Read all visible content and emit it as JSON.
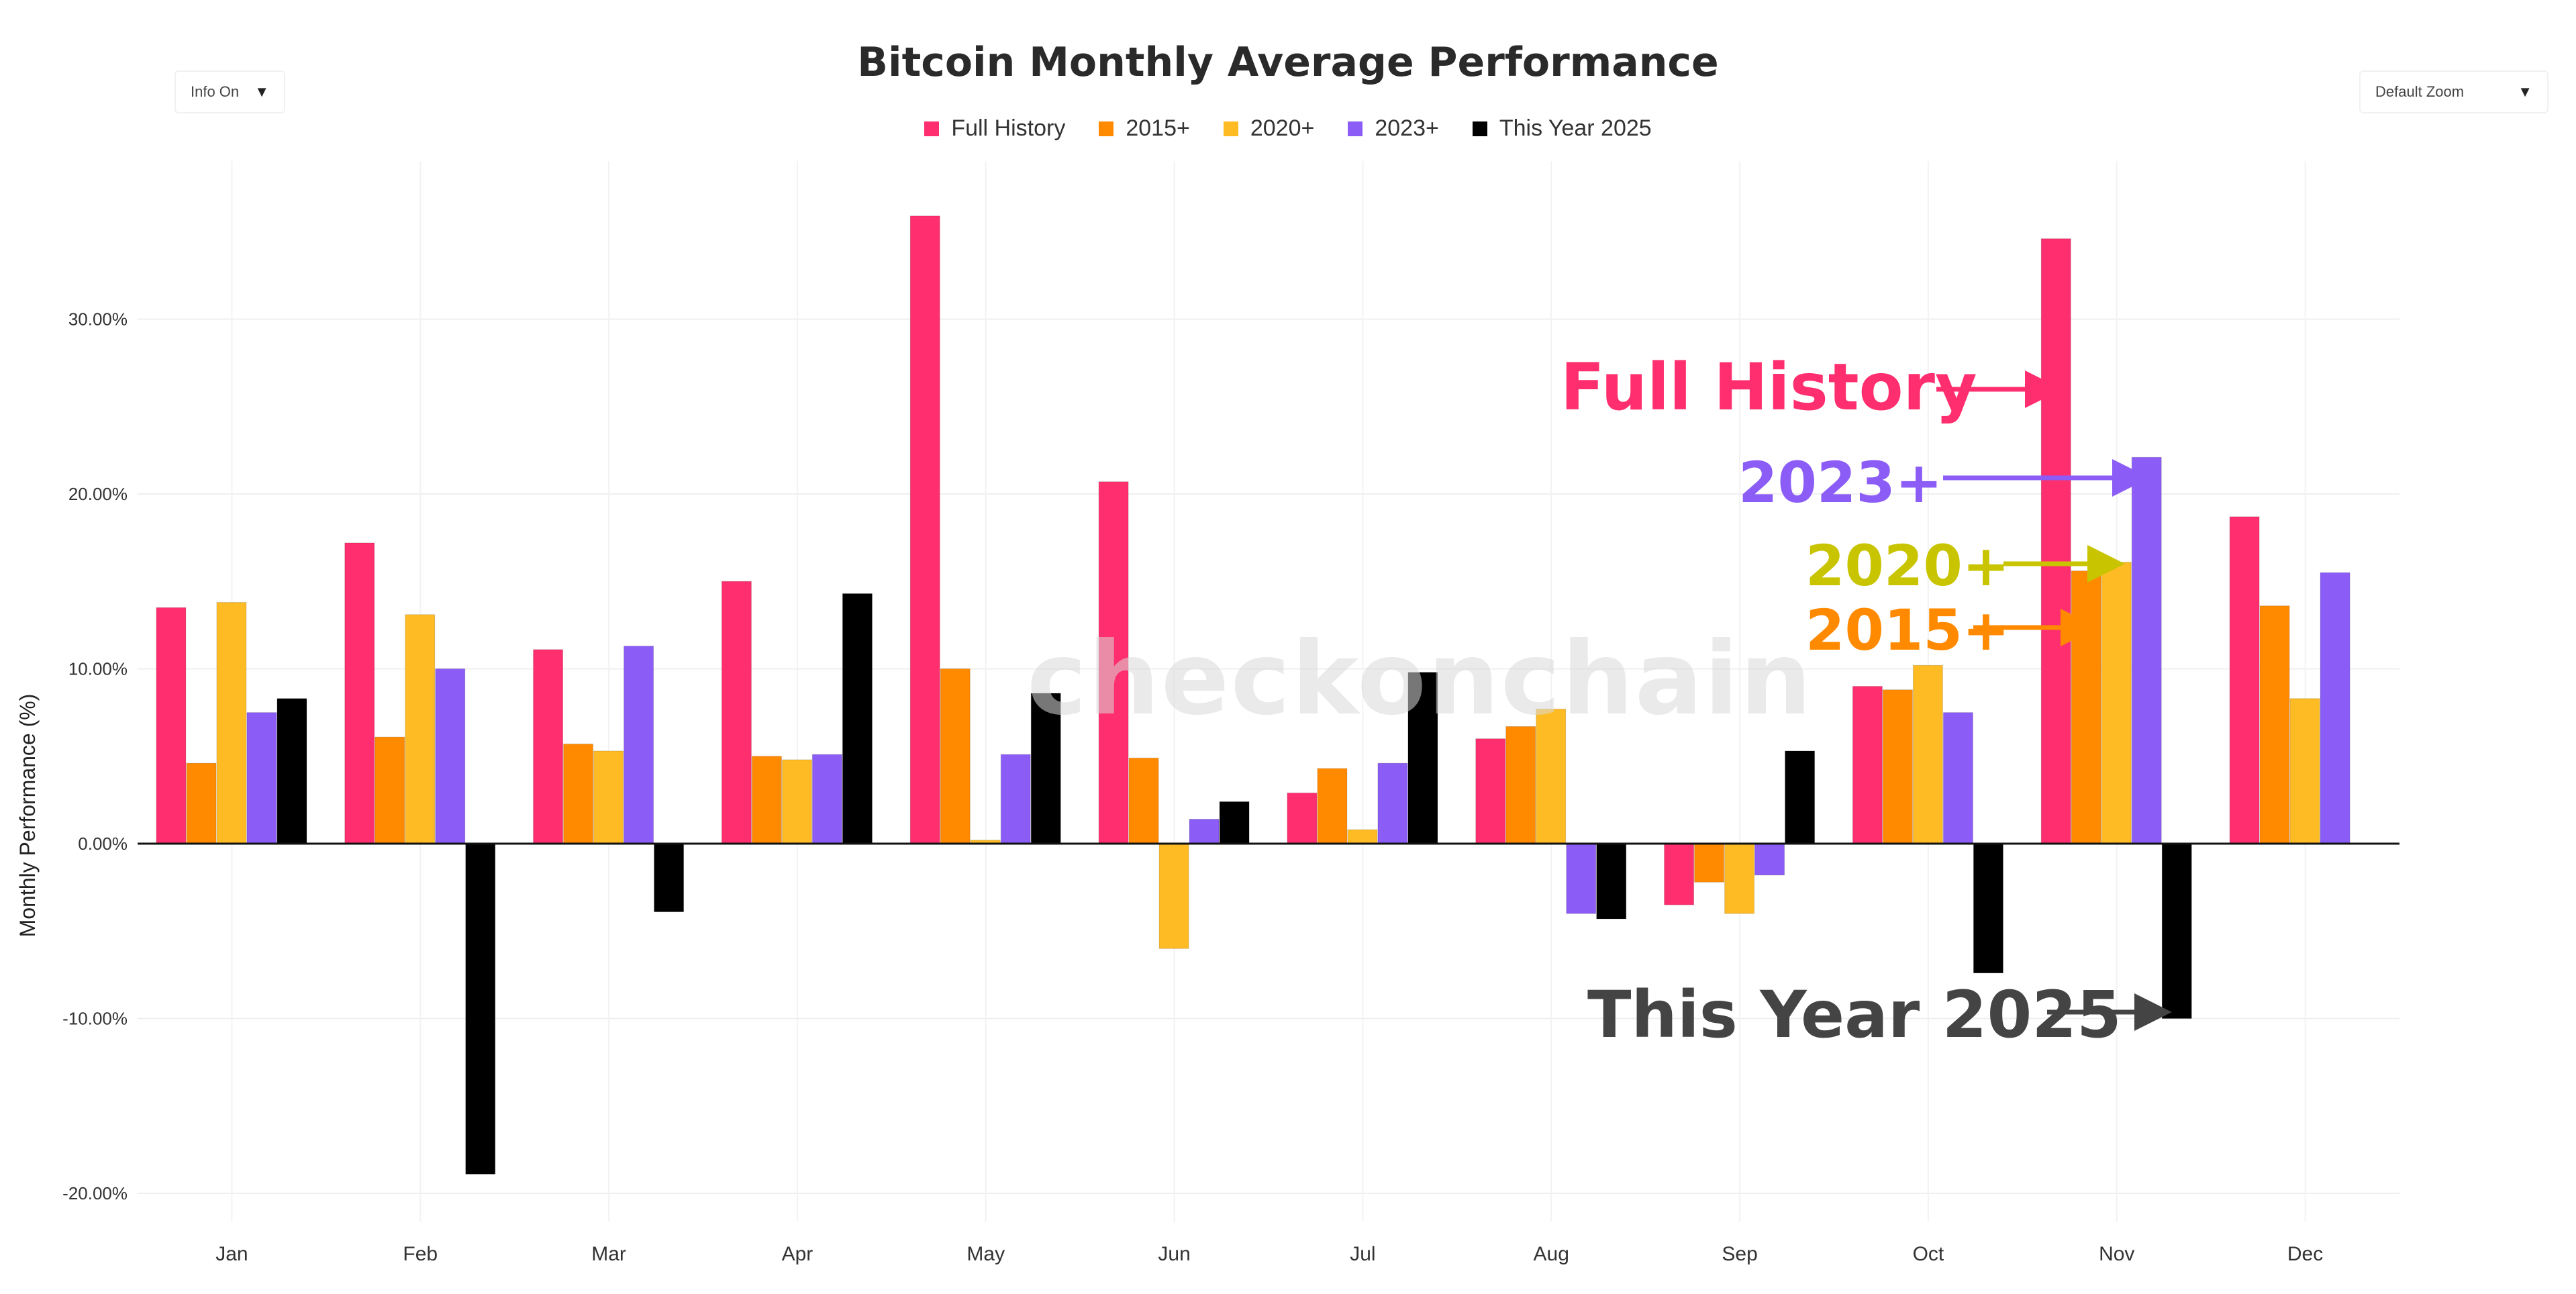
{
  "controls": {
    "info_toggle_label": "Info On",
    "zoom_label": "Default Zoom",
    "caret": "▼"
  },
  "watermark": "checkonchain",
  "annotations": [
    {
      "key": "fh",
      "text": "Full History",
      "color": "#ff2e6e"
    },
    {
      "key": "s2023",
      "text": "2023+",
      "color": "#8b5cf6"
    },
    {
      "key": "s2020",
      "text": "2020+",
      "color": "#c8c400"
    },
    {
      "key": "s2015",
      "text": "2015+",
      "color": "#ff8a00"
    },
    {
      "key": "ty",
      "text": "This Year 2025",
      "color": "#444444"
    }
  ],
  "chart_data": {
    "type": "bar",
    "title": "Bitcoin Monthly Average Performance",
    "ylabel": "Monthly Performance (%)",
    "xlabel": "",
    "ylim": [
      -22,
      38
    ],
    "yticks": [
      30,
      20,
      10,
      0,
      -10,
      -20
    ],
    "ytick_labels": [
      "30.00%",
      "20.00%",
      "10.00%",
      "0.00%",
      "-10.00%",
      "-20.00%"
    ],
    "categories": [
      "Jan",
      "Feb",
      "Mar",
      "Apr",
      "May",
      "Jun",
      "Jul",
      "Aug",
      "Sep",
      "Oct",
      "Nov",
      "Dec"
    ],
    "series": [
      {
        "name": "Full History",
        "color": "#ff2e6e",
        "values": [
          13.5,
          17.2,
          11.1,
          15.0,
          35.9,
          20.7,
          2.9,
          6.0,
          -3.5,
          9.0,
          34.6,
          18.7
        ]
      },
      {
        "name": "2015+",
        "color": "#ff8a00",
        "values": [
          4.6,
          6.1,
          5.7,
          5.0,
          10.0,
          4.9,
          4.3,
          6.7,
          -2.2,
          8.8,
          15.6,
          13.6
        ]
      },
      {
        "name": "2020+",
        "color": "#ffbb24",
        "values": [
          13.8,
          13.1,
          5.3,
          4.8,
          0.2,
          -6.0,
          0.8,
          7.7,
          -4.0,
          10.2,
          16.1,
          8.3
        ]
      },
      {
        "name": "2023+",
        "color": "#8b5cf6",
        "values": [
          7.5,
          10.0,
          11.3,
          5.1,
          5.1,
          1.4,
          4.6,
          -4.0,
          -1.8,
          7.5,
          22.1,
          15.5
        ]
      },
      {
        "name": "This Year 2025",
        "color": "#000000",
        "values": [
          8.3,
          -18.9,
          -3.9,
          14.3,
          8.6,
          2.4,
          9.8,
          -4.3,
          5.3,
          -7.4,
          -10.0,
          null
        ]
      }
    ],
    "legend_position": "top-center",
    "grid": true
  }
}
